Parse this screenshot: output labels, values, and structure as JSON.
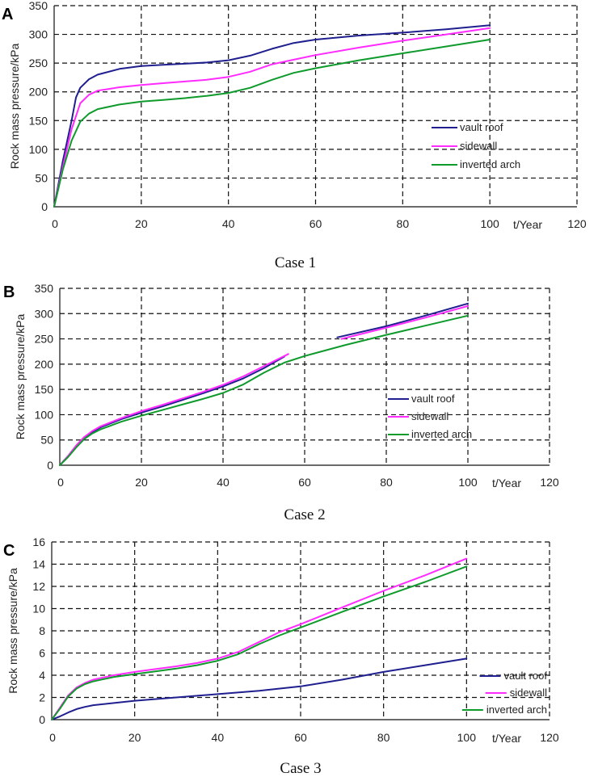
{
  "chart_data": [
    {
      "type": "line",
      "panel_label": "A",
      "caption": "Case 1",
      "xlabel": "t/Year",
      "ylabel": "Rock mass pressure/kPa",
      "xlim": [
        0,
        120
      ],
      "ylim": [
        0,
        350
      ],
      "xticks": [
        0,
        20,
        40,
        60,
        80,
        100,
        120
      ],
      "yticks": [
        0,
        50,
        100,
        150,
        200,
        250,
        300,
        350
      ],
      "grid": true,
      "legend_position": "lower-right",
      "series": [
        {
          "name": "vault roof",
          "color": "#1f1f8f",
          "x": [
            0,
            2,
            4,
            5,
            6,
            8,
            10,
            15,
            20,
            25,
            30,
            35,
            40,
            45,
            50,
            55,
            60,
            70,
            80,
            90,
            100
          ],
          "y": [
            0,
            80,
            150,
            190,
            207,
            222,
            230,
            240,
            245,
            247,
            249,
            251,
            255,
            263,
            275,
            285,
            291,
            298,
            303,
            309,
            316
          ]
        },
        {
          "name": "sidewall",
          "color": "#ff2bff",
          "x": [
            0,
            2,
            4,
            6,
            8,
            10,
            15,
            20,
            25,
            30,
            35,
            40,
            45,
            50,
            55,
            60,
            70,
            80,
            90,
            100
          ],
          "y": [
            0,
            70,
            135,
            180,
            195,
            202,
            208,
            212,
            215,
            218,
            221,
            226,
            235,
            248,
            256,
            264,
            277,
            289,
            300,
            311
          ]
        },
        {
          "name": "inverted arch",
          "color": "#0f9a2c",
          "x": [
            0,
            2,
            4,
            6,
            8,
            10,
            15,
            20,
            25,
            30,
            35,
            40,
            45,
            50,
            55,
            60,
            70,
            80,
            90,
            100
          ],
          "y": [
            0,
            65,
            115,
            148,
            162,
            170,
            178,
            183,
            186,
            189,
            193,
            198,
            207,
            221,
            233,
            241,
            255,
            267,
            279,
            291
          ]
        }
      ]
    },
    {
      "type": "line",
      "panel_label": "B",
      "caption": "Case 2",
      "xlabel": "t/Year",
      "ylabel": "Rock mass pressure/kPa",
      "xlim": [
        0,
        120
      ],
      "ylim": [
        0,
        350
      ],
      "xticks": [
        0,
        20,
        40,
        60,
        80,
        100,
        120
      ],
      "yticks": [
        0,
        50,
        100,
        150,
        200,
        250,
        300,
        350
      ],
      "grid": true,
      "legend_position": "lower-right",
      "series": [
        {
          "name": "vault roof",
          "color": "#1f1f8f",
          "segments": [
            {
              "x": [
                0,
                2,
                4,
                6,
                8,
                10,
                15,
                20,
                25,
                30,
                35,
                40,
                45,
                50,
                55
              ],
              "y": [
                0,
                18,
                38,
                55,
                66,
                75,
                91,
                104,
                116,
                129,
                142,
                156,
                172,
                192,
                215
              ]
            },
            {
              "x": [
                68,
                80,
                90,
                100
              ],
              "y": [
                253,
                275,
                297,
                320
              ]
            }
          ]
        },
        {
          "name": "sidewall",
          "color": "#ff2bff",
          "segments": [
            {
              "x": [
                0,
                2,
                4,
                6,
                8,
                10,
                15,
                20,
                25,
                30,
                35,
                40,
                45,
                50,
                56
              ],
              "y": [
                0,
                18,
                39,
                56,
                68,
                77,
                93,
                107,
                119,
                132,
                145,
                159,
                176,
                196,
                220
              ]
            },
            {
              "x": [
                69,
                80,
                90,
                100
              ],
              "y": [
                250,
                272,
                293,
                315
              ]
            }
          ]
        },
        {
          "name": "inverted arch",
          "color": "#0f9a2c",
          "x": [
            0,
            2,
            4,
            6,
            8,
            10,
            15,
            20,
            25,
            30,
            35,
            40,
            45,
            50,
            55,
            60,
            70,
            80,
            90,
            100
          ],
          "y": [
            0,
            16,
            35,
            52,
            63,
            71,
            86,
            98,
            109,
            120,
            131,
            143,
            160,
            183,
            203,
            216,
            238,
            258,
            277,
            296
          ]
        }
      ]
    },
    {
      "type": "line",
      "panel_label": "C",
      "caption": "Case 3",
      "xlabel": "t/Year",
      "ylabel": "Rock mass pressure/kPa",
      "xlim": [
        0,
        120
      ],
      "ylim": [
        0,
        16
      ],
      "xticks": [
        0,
        20,
        40,
        60,
        80,
        100,
        120
      ],
      "yticks": [
        0,
        2,
        4,
        6,
        8,
        10,
        12,
        14,
        16
      ],
      "grid": true,
      "legend_position": "lower-right",
      "series": [
        {
          "name": "vault roof",
          "color": "#1f1f8f",
          "x": [
            0,
            2,
            4,
            6,
            8,
            10,
            15,
            20,
            30,
            40,
            50,
            60,
            70,
            80,
            90,
            100
          ],
          "y": [
            0,
            0.3,
            0.65,
            0.95,
            1.15,
            1.3,
            1.5,
            1.7,
            2.0,
            2.3,
            2.6,
            3.0,
            3.6,
            4.3,
            4.9,
            5.5
          ]
        },
        {
          "name": "sidewall",
          "color": "#ff2bff",
          "x": [
            0,
            2,
            4,
            6,
            8,
            10,
            15,
            20,
            25,
            30,
            35,
            40,
            45,
            50,
            55,
            60,
            70,
            80,
            90,
            100
          ],
          "y": [
            0,
            1.1,
            2.2,
            2.9,
            3.3,
            3.6,
            4.0,
            4.3,
            4.55,
            4.8,
            5.1,
            5.5,
            6.1,
            7.0,
            7.9,
            8.6,
            10.1,
            11.6,
            13.0,
            14.5
          ]
        },
        {
          "name": "inverted arch",
          "color": "#0f9a2c",
          "x": [
            0,
            2,
            4,
            6,
            8,
            10,
            15,
            20,
            25,
            30,
            35,
            40,
            45,
            50,
            55,
            60,
            70,
            80,
            90,
            100
          ],
          "y": [
            0,
            1.0,
            2.1,
            2.8,
            3.2,
            3.45,
            3.85,
            4.1,
            4.35,
            4.6,
            4.9,
            5.3,
            5.9,
            6.8,
            7.6,
            8.3,
            9.7,
            11.1,
            12.4,
            13.8
          ]
        }
      ]
    }
  ]
}
